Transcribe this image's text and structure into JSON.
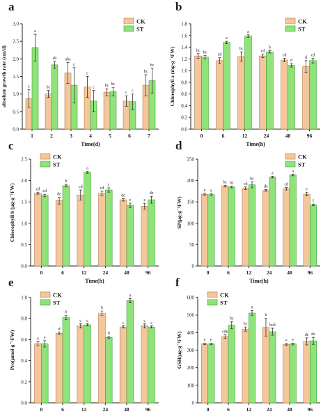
{
  "colors": {
    "ck": "#f3c69b",
    "st": "#8fe37a",
    "ck_stroke": "#b07a45",
    "st_stroke": "#3f9f2f"
  },
  "chart_data": [
    {
      "panel": "a",
      "type": "bar",
      "categories": [
        "1",
        "2",
        "3",
        "4",
        "5",
        "6",
        "7"
      ],
      "xlabel": "Time(d)",
      "ylabel": "absolute growth rate (cm/d)",
      "ylim": [
        0,
        3.0
      ],
      "yticks": [
        "0.0",
        "0.5",
        "1.0",
        "1.5",
        "2.0",
        "2.5",
        "3.0"
      ],
      "legend": {
        "position": "top-right"
      },
      "series": [
        {
          "name": "CK",
          "values": [
            0.87,
            1.0,
            1.6,
            1.2,
            1.05,
            0.8,
            1.25
          ],
          "errors": [
            0.25,
            0.1,
            0.3,
            0.3,
            0.1,
            0.15,
            0.3
          ],
          "letters": [
            "c",
            "bc",
            "abc",
            "c",
            "bc",
            "c",
            "bc"
          ]
        },
        {
          "name": "ST",
          "values": [
            2.32,
            1.83,
            1.25,
            0.8,
            1.07,
            0.78,
            1.38
          ],
          "errors": [
            0.38,
            0.1,
            0.5,
            0.3,
            0.12,
            0.22,
            0.35
          ],
          "letters": [
            "a",
            "ab",
            "c",
            "c",
            "bc",
            "c",
            "bc"
          ]
        }
      ]
    },
    {
      "panel": "b",
      "type": "bar",
      "categories": [
        "0",
        "6",
        "12",
        "24",
        "48",
        "96"
      ],
      "xlabel": "Time(h)",
      "ylabel": "Chlorophyll a (mg·g⁻¹FW)",
      "ylim": [
        0,
        1.8
      ],
      "yticks": [
        "0.0",
        "0.2",
        "0.4",
        "0.6",
        "0.8",
        "1.0",
        "1.2",
        "1.4",
        "1.6",
        "1.8"
      ],
      "legend": {
        "position": "top-right"
      },
      "series": [
        {
          "name": "CK",
          "values": [
            1.25,
            1.17,
            1.24,
            1.25,
            1.18,
            1.07
          ],
          "errors": [
            0.04,
            0.05,
            0.08,
            0.03,
            0.03,
            0.1
          ],
          "letters": [
            "bc",
            "cd",
            "bc",
            "cd",
            "cd",
            "d"
          ]
        },
        {
          "name": "ST",
          "values": [
            1.23,
            1.48,
            1.59,
            1.32,
            1.09,
            1.17
          ],
          "errors": [
            0.03,
            0.02,
            0.02,
            0.02,
            0.03,
            0.04
          ],
          "letters": [
            "bc",
            "a",
            "a",
            "b",
            "d",
            "cd"
          ]
        }
      ]
    },
    {
      "panel": "c",
      "type": "bar",
      "categories": [
        "0",
        "6",
        "12",
        "24",
        "48",
        "96"
      ],
      "xlabel": "Time(h)",
      "ylabel": "Chlorophyll b (μg·g⁻¹FW)",
      "ylim": [
        0,
        2.5
      ],
      "yticks": [
        "0.0",
        "0.5",
        "1.0",
        "1.5",
        "2.0",
        "2.5"
      ],
      "legend": {
        "position": "top-left"
      },
      "series": [
        {
          "name": "CK",
          "values": [
            1.7,
            1.53,
            1.66,
            1.7,
            1.55,
            1.4
          ],
          "errors": [
            0.02,
            0.08,
            0.12,
            0.05,
            0.03,
            0.07
          ],
          "letters": [
            "cd",
            "de",
            "cd",
            "cd",
            "de",
            "e"
          ]
        },
        {
          "name": "ST",
          "values": [
            1.65,
            1.88,
            2.19,
            1.78,
            1.42,
            1.55
          ],
          "errors": [
            0.03,
            0.03,
            0.02,
            0.05,
            0.05,
            0.08
          ],
          "letters": [
            "cd",
            "b",
            "a",
            "c",
            "e",
            "de"
          ]
        }
      ]
    },
    {
      "panel": "d",
      "type": "bar",
      "categories": [
        "0",
        "6",
        "12",
        "24",
        "48",
        "96"
      ],
      "xlabel": "Time(h)",
      "ylabel": "SP(μg·g⁻¹FW)",
      "ylim": [
        0,
        250
      ],
      "yticks": [
        "0",
        "50",
        "100",
        "150",
        "200",
        "250"
      ],
      "legend": {
        "position": "top-right"
      },
      "series": [
        {
          "name": "CK",
          "values": [
            168,
            187,
            182,
            177,
            181,
            168
          ],
          "errors": [
            2,
            2,
            3,
            2,
            3,
            4
          ],
          "letters": [
            "e",
            "bc",
            "cd",
            "de",
            "cd",
            "e"
          ]
        },
        {
          "name": "ST",
          "values": [
            167,
            185,
            190,
            208,
            213,
            143
          ],
          "errors": [
            2,
            2,
            7,
            2,
            2,
            2
          ],
          "letters": [
            "e",
            "bc",
            "bc",
            "a",
            "a",
            "f"
          ]
        }
      ]
    },
    {
      "panel": "e",
      "type": "bar",
      "categories": [
        "0",
        "6",
        "12",
        "24",
        "48",
        "96"
      ],
      "xlabel": "Time(h)",
      "ylabel": "Pro(μmol·g⁻¹FW)",
      "ylim": [
        0,
        1.0
      ],
      "yticks": [
        "0.0",
        "0.2",
        "0.4",
        "0.6",
        "0.8",
        "1.0"
      ],
      "legend": {
        "position": "top-left"
      },
      "series": [
        {
          "name": "CK",
          "values": [
            0.56,
            0.66,
            0.73,
            0.85,
            0.72,
            0.73
          ],
          "errors": [
            0.02,
            0.01,
            0.02,
            0.02,
            0.01,
            0.02
          ],
          "letters": [
            "e",
            "d",
            "c",
            "b",
            "c",
            "c"
          ]
        },
        {
          "name": "ST",
          "values": [
            0.56,
            0.81,
            0.74,
            0.62,
            0.97,
            0.72
          ],
          "errors": [
            0.03,
            0.02,
            0.01,
            0.01,
            0.02,
            0.01
          ],
          "letters": [
            "e",
            "b",
            "c",
            "d",
            "a",
            "c"
          ]
        }
      ]
    },
    {
      "panel": "f",
      "type": "bar",
      "categories": [
        "0",
        "6",
        "12",
        "24",
        "48",
        "96"
      ],
      "xlabel": "Time(h)",
      "ylabel": "GSH(μg·g⁻¹FW)",
      "ylim": [
        0,
        600
      ],
      "yticks": [
        "0",
        "100",
        "200",
        "300",
        "400",
        "500",
        "600"
      ],
      "legend": {
        "position": "top-left"
      },
      "series": [
        {
          "name": "CK",
          "values": [
            335,
            377,
            420,
            430,
            333,
            350
          ],
          "errors": [
            4,
            10,
            12,
            50,
            5,
            20
          ],
          "letters": [
            "e",
            "cde",
            "bc",
            "b",
            "e",
            "de"
          ]
        },
        {
          "name": "ST",
          "values": [
            335,
            442,
            512,
            405,
            335,
            353
          ],
          "errors": [
            4,
            20,
            15,
            20,
            5,
            20
          ],
          "letters": [
            "e",
            "bc",
            "a",
            "bcd",
            "e",
            "de"
          ]
        }
      ]
    }
  ]
}
